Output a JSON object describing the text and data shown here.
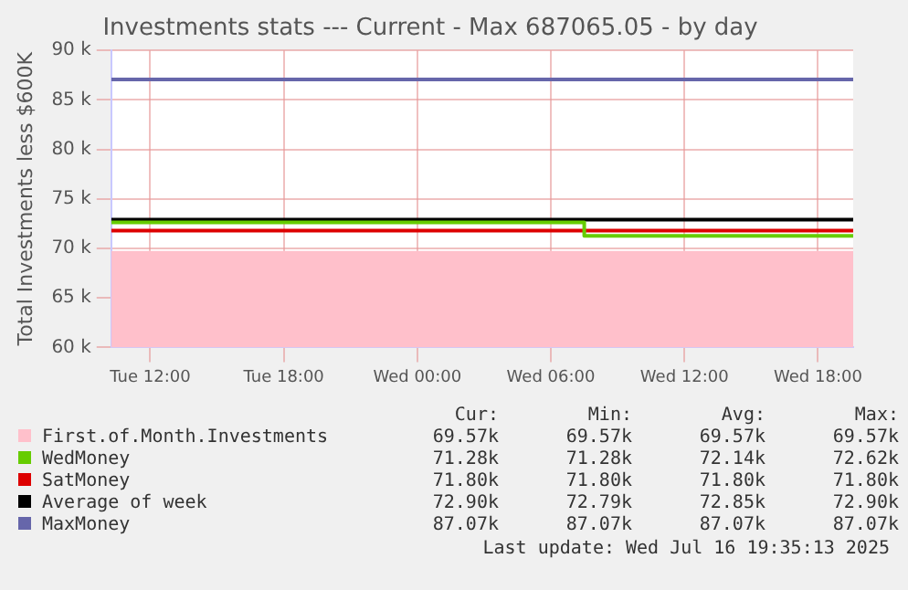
{
  "chart_data": {
    "type": "line",
    "title": "Investments stats --- Current - Max 687065.05 - by day",
    "ylabel": "Total Investments less $600K",
    "xlim": [
      "2025-07-15T10:15",
      "2025-07-16T19:35"
    ],
    "xticks": [
      {
        "value": "2025-07-15T12:00",
        "label": "Tue 12:00"
      },
      {
        "value": "2025-07-15T18:00",
        "label": "Tue 18:00"
      },
      {
        "value": "2025-07-16T00:00",
        "label": "Wed 00:00"
      },
      {
        "value": "2025-07-16T06:00",
        "label": "Wed 06:00"
      },
      {
        "value": "2025-07-16T12:00",
        "label": "Wed 12:00"
      },
      {
        "value": "2025-07-16T18:00",
        "label": "Wed 18:00"
      }
    ],
    "ylim": [
      60000,
      90000
    ],
    "yticks": [
      {
        "value": 60000,
        "label": "60 k"
      },
      {
        "value": 65000,
        "label": "65 k"
      },
      {
        "value": 70000,
        "label": "70 k"
      },
      {
        "value": 75000,
        "label": "75 k"
      },
      {
        "value": 80000,
        "label": "80 k"
      },
      {
        "value": 85000,
        "label": "85 k"
      },
      {
        "value": 90000,
        "label": "90 k"
      }
    ],
    "grid": true,
    "legend": "bottom",
    "series": [
      {
        "name": "First.of.Month.Investments",
        "type": "area",
        "color": "#ffc0cb",
        "x": [
          "2025-07-15T10:15",
          "2025-07-16T19:35"
        ],
        "values": [
          69570,
          69570
        ]
      },
      {
        "name": "WedMoney",
        "type": "step",
        "color": "#66cc00",
        "x": [
          "2025-07-15T10:15",
          "2025-07-16T07:30",
          "2025-07-16T19:35"
        ],
        "values": [
          72620,
          71280,
          71280
        ]
      },
      {
        "name": "SatMoney",
        "color": "#dd0000",
        "x": [
          "2025-07-15T10:15",
          "2025-07-16T19:35"
        ],
        "values": [
          71800,
          71800
        ]
      },
      {
        "name": "Average of week",
        "color": "#000000",
        "x": [
          "2025-07-15T10:15",
          "2025-07-16T19:35"
        ],
        "values": [
          72900,
          72900
        ]
      },
      {
        "name": "MaxMoney",
        "color": "#6666aa",
        "x": [
          "2025-07-15T10:15",
          "2025-07-16T19:35"
        ],
        "values": [
          87070,
          87070
        ]
      }
    ],
    "annotations": [
      "Cur:",
      "Min:",
      "Avg:",
      "Max:",
      "69.57k",
      "69.57k",
      "69.57k",
      "69.57k",
      "71.28k",
      "71.28k",
      "72.14k",
      "72.62k",
      "71.80k",
      "71.80k",
      "71.80k",
      "71.80k",
      "72.90k",
      "72.79k",
      "72.85k",
      "72.90k",
      "87.07k",
      "87.07k",
      "87.07k",
      "87.07k",
      "Last update: Wed Jul 16 19:35:13 2025"
    ]
  }
}
